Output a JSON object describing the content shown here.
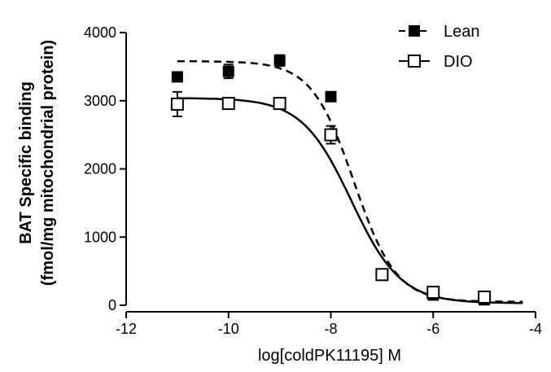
{
  "chart_data": {
    "type": "scatter",
    "xlabel": "log[coldPK11195] M",
    "ylabel_line1": "BAT Specific binding",
    "ylabel_line2": "(fmol/mg mitochondrial protein)",
    "xlim": [
      -12,
      -4
    ],
    "ylim": [
      0,
      4000
    ],
    "x_ticks": [
      -12,
      -10,
      -8,
      -6,
      -4
    ],
    "y_ticks": [
      0,
      1000,
      2000,
      3000,
      4000
    ],
    "legend_position": "top-right",
    "series": [
      {
        "name": "Lean",
        "marker": "filled-square",
        "line_style": "dashed",
        "points": [
          {
            "x": -11,
            "y": 3350,
            "err": 0
          },
          {
            "x": -10,
            "y": 3430,
            "err": 100
          },
          {
            "x": -9,
            "y": 3590,
            "err": 80
          },
          {
            "x": -8,
            "y": 3060,
            "err": 0
          },
          {
            "x": -7,
            "y": 450,
            "err": 0
          },
          {
            "x": -6,
            "y": 150,
            "err": 0
          },
          {
            "x": -5,
            "y": 80,
            "err": 0
          }
        ],
        "fit": {
          "top": 3580,
          "bottom": 50,
          "log_ec50": -7.55,
          "hill": -1.05
        }
      },
      {
        "name": "DIO",
        "marker": "open-square",
        "line_style": "solid",
        "points": [
          {
            "x": -11,
            "y": 2950,
            "err": 180
          },
          {
            "x": -10,
            "y": 2960,
            "err": 0
          },
          {
            "x": -9,
            "y": 2960,
            "err": 0
          },
          {
            "x": -8,
            "y": 2500,
            "err": 130
          },
          {
            "x": -7,
            "y": 450,
            "err": 0
          },
          {
            "x": -6,
            "y": 190,
            "err": 0
          },
          {
            "x": -5,
            "y": 120,
            "err": 0
          }
        ],
        "fit": {
          "top": 3040,
          "bottom": 30,
          "log_ec50": -7.6,
          "hill": -0.9
        }
      }
    ]
  }
}
